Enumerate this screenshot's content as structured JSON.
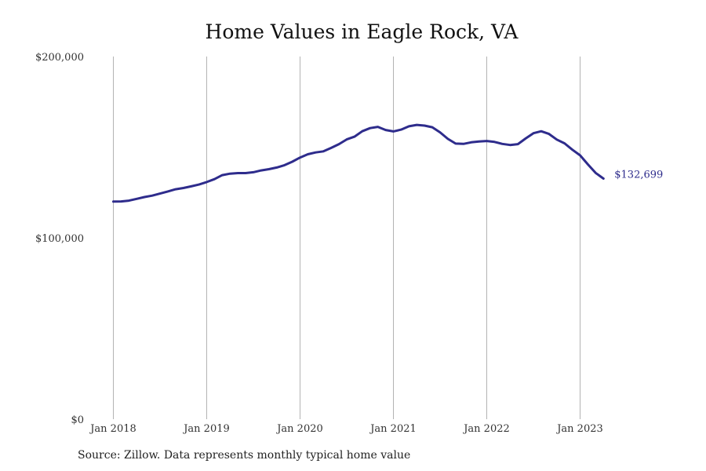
{
  "title": "Home Values in Eagle Rock, VA",
  "source": "Source: Zillow. Data represents monthly typical home value",
  "colors": {
    "line": "#2e2c8c",
    "grid": "#b3b3b3",
    "text": "#333333"
  },
  "chart_data": {
    "type": "line",
    "title": "Home Values in Eagle Rock, VA",
    "xlabel": "",
    "ylabel": "",
    "ylim": [
      0,
      200000
    ],
    "y_ticks": [
      0,
      100000,
      200000
    ],
    "y_tick_labels": [
      "$0",
      "$100,000",
      "$200,000"
    ],
    "x_tick_labels": [
      "Jan 2018",
      "Jan 2019",
      "Jan 2020",
      "Jan 2021",
      "Jan 2022",
      "Jan 2023"
    ],
    "xlim": [
      "2018-01",
      "2023-04"
    ],
    "grid": "vertical at x ticks",
    "legend": "none",
    "end_label": "$132,699",
    "series": [
      {
        "x": [
          "2018-01",
          "2018-02",
          "2018-03",
          "2018-04",
          "2018-05",
          "2018-06",
          "2018-07",
          "2018-08",
          "2018-09",
          "2018-10",
          "2018-11",
          "2018-12",
          "2019-01",
          "2019-02",
          "2019-03",
          "2019-04",
          "2019-05",
          "2019-06",
          "2019-07",
          "2019-08",
          "2019-09",
          "2019-10",
          "2019-11",
          "2019-12",
          "2020-01",
          "2020-02",
          "2020-03",
          "2020-04",
          "2020-05",
          "2020-06",
          "2020-07",
          "2020-08",
          "2020-09",
          "2020-10",
          "2020-11",
          "2020-12",
          "2021-01",
          "2021-02",
          "2021-03",
          "2021-04",
          "2021-05",
          "2021-06",
          "2021-07",
          "2021-08",
          "2021-09",
          "2021-10",
          "2021-11",
          "2021-12",
          "2022-01",
          "2022-02",
          "2022-03",
          "2022-04",
          "2022-05",
          "2022-06",
          "2022-07",
          "2022-08",
          "2022-09",
          "2022-10",
          "2022-11",
          "2022-12",
          "2023-01",
          "2023-02",
          "2023-03",
          "2023-04"
        ],
        "values": [
          120000,
          120100,
          120500,
          121500,
          122500,
          123300,
          124400,
          125600,
          126800,
          127500,
          128400,
          129400,
          130800,
          132400,
          134600,
          135400,
          135700,
          135700,
          136200,
          137200,
          137900,
          138800,
          140100,
          142000,
          144300,
          146100,
          147100,
          147700,
          149600,
          151700,
          154300,
          155800,
          158800,
          160500,
          161200,
          159500,
          158700,
          159700,
          161500,
          162300,
          161900,
          161000,
          158200,
          154600,
          152000,
          151800,
          152700,
          153100,
          153400,
          152900,
          151800,
          151200,
          151700,
          154800,
          157700,
          158800,
          157300,
          154200,
          152100,
          148600,
          145500,
          140500,
          135800,
          132699
        ]
      }
    ]
  }
}
